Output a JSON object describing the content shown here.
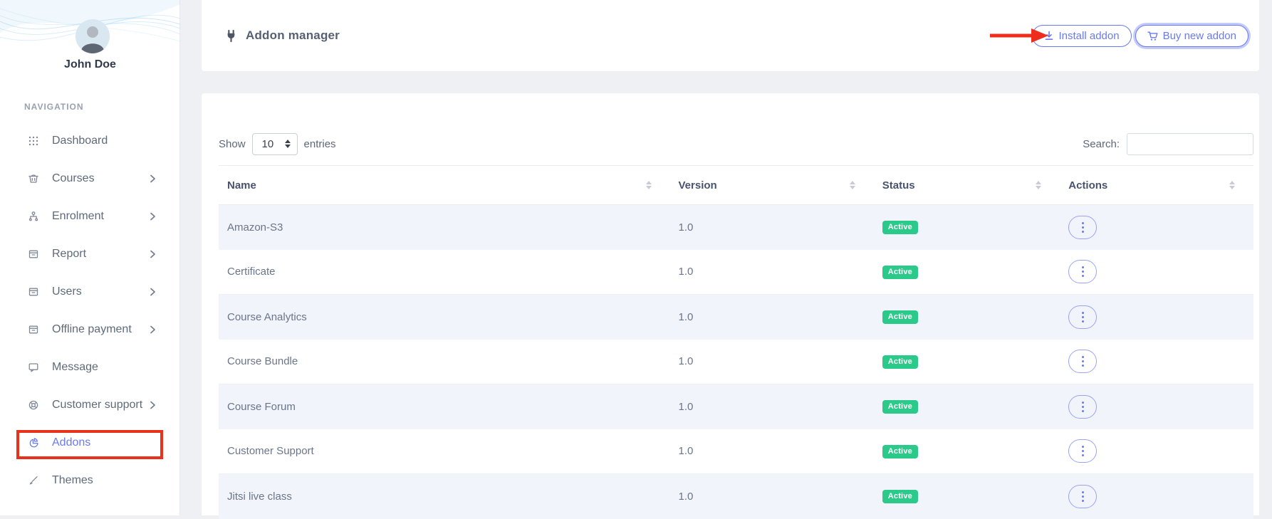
{
  "sidebar": {
    "user": {
      "name": "John Doe"
    },
    "section_label": "NAVIGATION",
    "items": [
      {
        "label": "Dashboard",
        "icon": "grid-icon",
        "chevron": false,
        "active": false
      },
      {
        "label": "Courses",
        "icon": "basket-icon",
        "chevron": true,
        "active": false
      },
      {
        "label": "Enrolment",
        "icon": "sitemap-icon",
        "chevron": true,
        "active": false
      },
      {
        "label": "Report",
        "icon": "archive-icon",
        "chevron": true,
        "active": false
      },
      {
        "label": "Users",
        "icon": "archive-icon",
        "chevron": true,
        "active": false
      },
      {
        "label": "Offline payment",
        "icon": "archive-icon",
        "chevron": true,
        "active": false
      },
      {
        "label": "Message",
        "icon": "chat-icon",
        "chevron": false,
        "active": false
      },
      {
        "label": "Customer support",
        "icon": "lifebuoy-icon",
        "chevron": true,
        "active": false
      },
      {
        "label": "Addons",
        "icon": "pie-icon",
        "chevron": false,
        "active": true,
        "annotated": true
      },
      {
        "label": "Themes",
        "icon": "brush-icon",
        "chevron": false,
        "active": false
      }
    ]
  },
  "header": {
    "title": "Addon manager",
    "title_icon": "plug-icon",
    "install_button": "Install addon",
    "buy_button": "Buy new addon"
  },
  "toolbar": {
    "show_label": "Show",
    "page_size": "10",
    "entries_label": "entries",
    "search_label": "Search:",
    "search_value": ""
  },
  "table": {
    "columns": [
      "Name",
      "Version",
      "Status",
      "Actions"
    ],
    "rows": [
      {
        "name": "Amazon-S3",
        "version": "1.0",
        "status": "Active"
      },
      {
        "name": "Certificate",
        "version": "1.0",
        "status": "Active"
      },
      {
        "name": "Course Analytics",
        "version": "1.0",
        "status": "Active"
      },
      {
        "name": "Course Bundle",
        "version": "1.0",
        "status": "Active"
      },
      {
        "name": "Course Forum",
        "version": "1.0",
        "status": "Active"
      },
      {
        "name": "Customer Support",
        "version": "1.0",
        "status": "Active"
      },
      {
        "name": "Jitsi live class",
        "version": "1.0",
        "status": "Active"
      }
    ]
  },
  "annotations": {
    "arrow_target": "Install addon button",
    "box_target": "Addons sidebar item"
  },
  "colors": {
    "accent": "#6a7af0",
    "status_green": "#2bc98a",
    "annotation_red": "#e8321c"
  }
}
